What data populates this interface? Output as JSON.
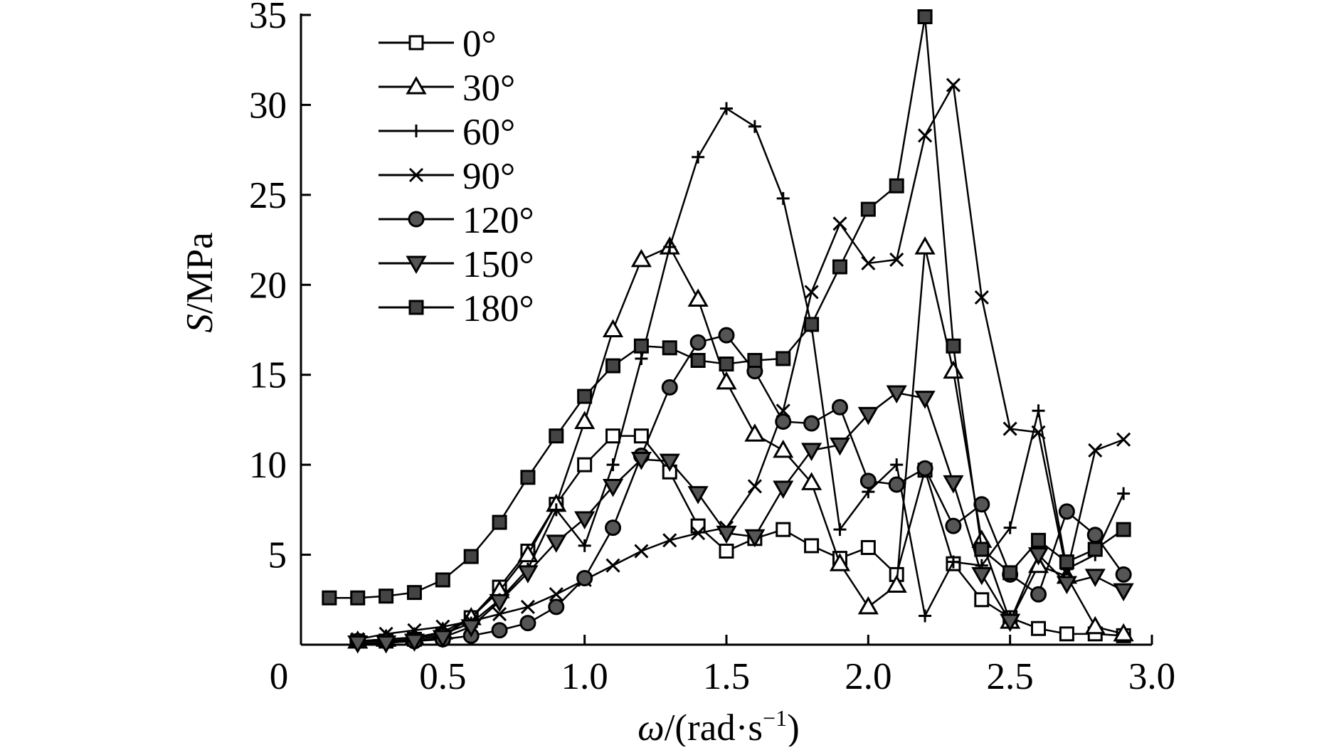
{
  "chart_data": {
    "type": "line",
    "title": "",
    "xlabel": "ω/(rad·s⁻¹)",
    "xlabel_parts": {
      "symbol": "ω",
      "unit": "/(rad·s",
      "exponent": "−1",
      "close": ")"
    },
    "ylabel": "S/MPa",
    "ylabel_parts": {
      "symbol": "S",
      "unit": "/MPa"
    },
    "xlim": [
      0,
      3.0
    ],
    "ylim": [
      0,
      35
    ],
    "xticks": [
      0,
      0.5,
      1.0,
      1.5,
      2.0,
      2.5,
      3.0
    ],
    "xtick_labels": [
      "0",
      "0.5",
      "1.0",
      "1.5",
      "2.0",
      "2.5",
      "3.0"
    ],
    "yticks": [
      5,
      10,
      15,
      20,
      25,
      30,
      35
    ],
    "ytick_labels": [
      "5",
      "10",
      "15",
      "20",
      "25",
      "30",
      "35"
    ],
    "grid": false,
    "legend_position": "top-left",
    "x": [
      0.1,
      0.2,
      0.3,
      0.4,
      0.5,
      0.6,
      0.7,
      0.8,
      0.9,
      1.0,
      1.1,
      1.2,
      1.3,
      1.4,
      1.5,
      1.6,
      1.7,
      1.8,
      1.9,
      2.0,
      2.1,
      2.2,
      2.3,
      2.4,
      2.5,
      2.6,
      2.7,
      2.8,
      2.9
    ],
    "series": [
      {
        "name": "0°",
        "marker": "square-open",
        "values": [
          null,
          0.2,
          0.2,
          0.3,
          0.5,
          1.5,
          3.2,
          5.2,
          7.8,
          10.0,
          11.6,
          11.6,
          9.6,
          6.6,
          5.2,
          5.9,
          6.4,
          5.5,
          4.8,
          5.4,
          3.9,
          9.7,
          4.5,
          2.5,
          1.5,
          0.9,
          0.6,
          0.6,
          0.5
        ]
      },
      {
        "name": "30°",
        "marker": "triangle-up-open",
        "values": [
          null,
          0.2,
          0.3,
          0.4,
          0.7,
          1.5,
          3.0,
          5.0,
          7.8,
          12.4,
          17.5,
          21.4,
          22.1,
          19.2,
          14.6,
          11.7,
          10.8,
          9.0,
          4.5,
          2.1,
          3.3,
          22.1,
          15.2,
          5.8,
          1.3,
          4.4,
          3.8,
          1.0,
          0.6
        ]
      },
      {
        "name": "60°",
        "marker": "plus",
        "values": [
          null,
          0.2,
          0.3,
          0.4,
          0.6,
          1.2,
          2.5,
          4.2,
          7.5,
          5.5,
          10.0,
          15.9,
          22.1,
          27.1,
          29.8,
          28.8,
          24.8,
          17.7,
          6.4,
          8.5,
          10.0,
          1.6,
          4.6,
          4.4,
          6.5,
          13.0,
          4.2,
          5.0,
          8.4
        ]
      },
      {
        "name": "90°",
        "marker": "x",
        "values": [
          null,
          0.3,
          0.6,
          0.8,
          1.0,
          1.3,
          1.7,
          2.1,
          2.8,
          3.6,
          4.4,
          5.2,
          5.8,
          6.2,
          6.5,
          8.8,
          13.0,
          19.6,
          23.4,
          21.2,
          21.4,
          28.3,
          31.1,
          19.3,
          12.0,
          11.8,
          4.0,
          10.8,
          11.4
        ]
      },
      {
        "name": "120°",
        "marker": "circle-filled",
        "values": [
          null,
          0.2,
          0.2,
          0.2,
          0.3,
          0.5,
          0.8,
          1.2,
          2.1,
          3.7,
          6.5,
          10.5,
          14.3,
          16.8,
          17.2,
          15.2,
          12.4,
          12.3,
          13.2,
          9.1,
          8.9,
          9.8,
          6.6,
          7.8,
          3.9,
          2.8,
          7.4,
          6.1,
          3.9
        ]
      },
      {
        "name": "150°",
        "marker": "triangle-down-filled",
        "values": [
          null,
          0.1,
          0.1,
          0.2,
          0.4,
          1.0,
          2.4,
          4.0,
          5.7,
          7.0,
          8.8,
          10.3,
          10.2,
          8.4,
          6.2,
          6.0,
          8.7,
          10.8,
          11.1,
          12.8,
          14.0,
          13.7,
          9.0,
          3.9,
          1.3,
          5.0,
          3.4,
          3.8,
          3.0
        ]
      },
      {
        "name": "180°",
        "marker": "square-filled",
        "values": [
          2.6,
          2.6,
          2.7,
          2.9,
          3.6,
          4.9,
          6.8,
          9.3,
          11.6,
          13.8,
          15.5,
          16.6,
          16.5,
          15.8,
          15.6,
          15.8,
          15.9,
          17.8,
          21.0,
          24.2,
          25.5,
          34.9,
          16.6,
          5.3,
          4.0,
          5.8,
          4.6,
          5.3,
          6.4
        ]
      }
    ]
  }
}
